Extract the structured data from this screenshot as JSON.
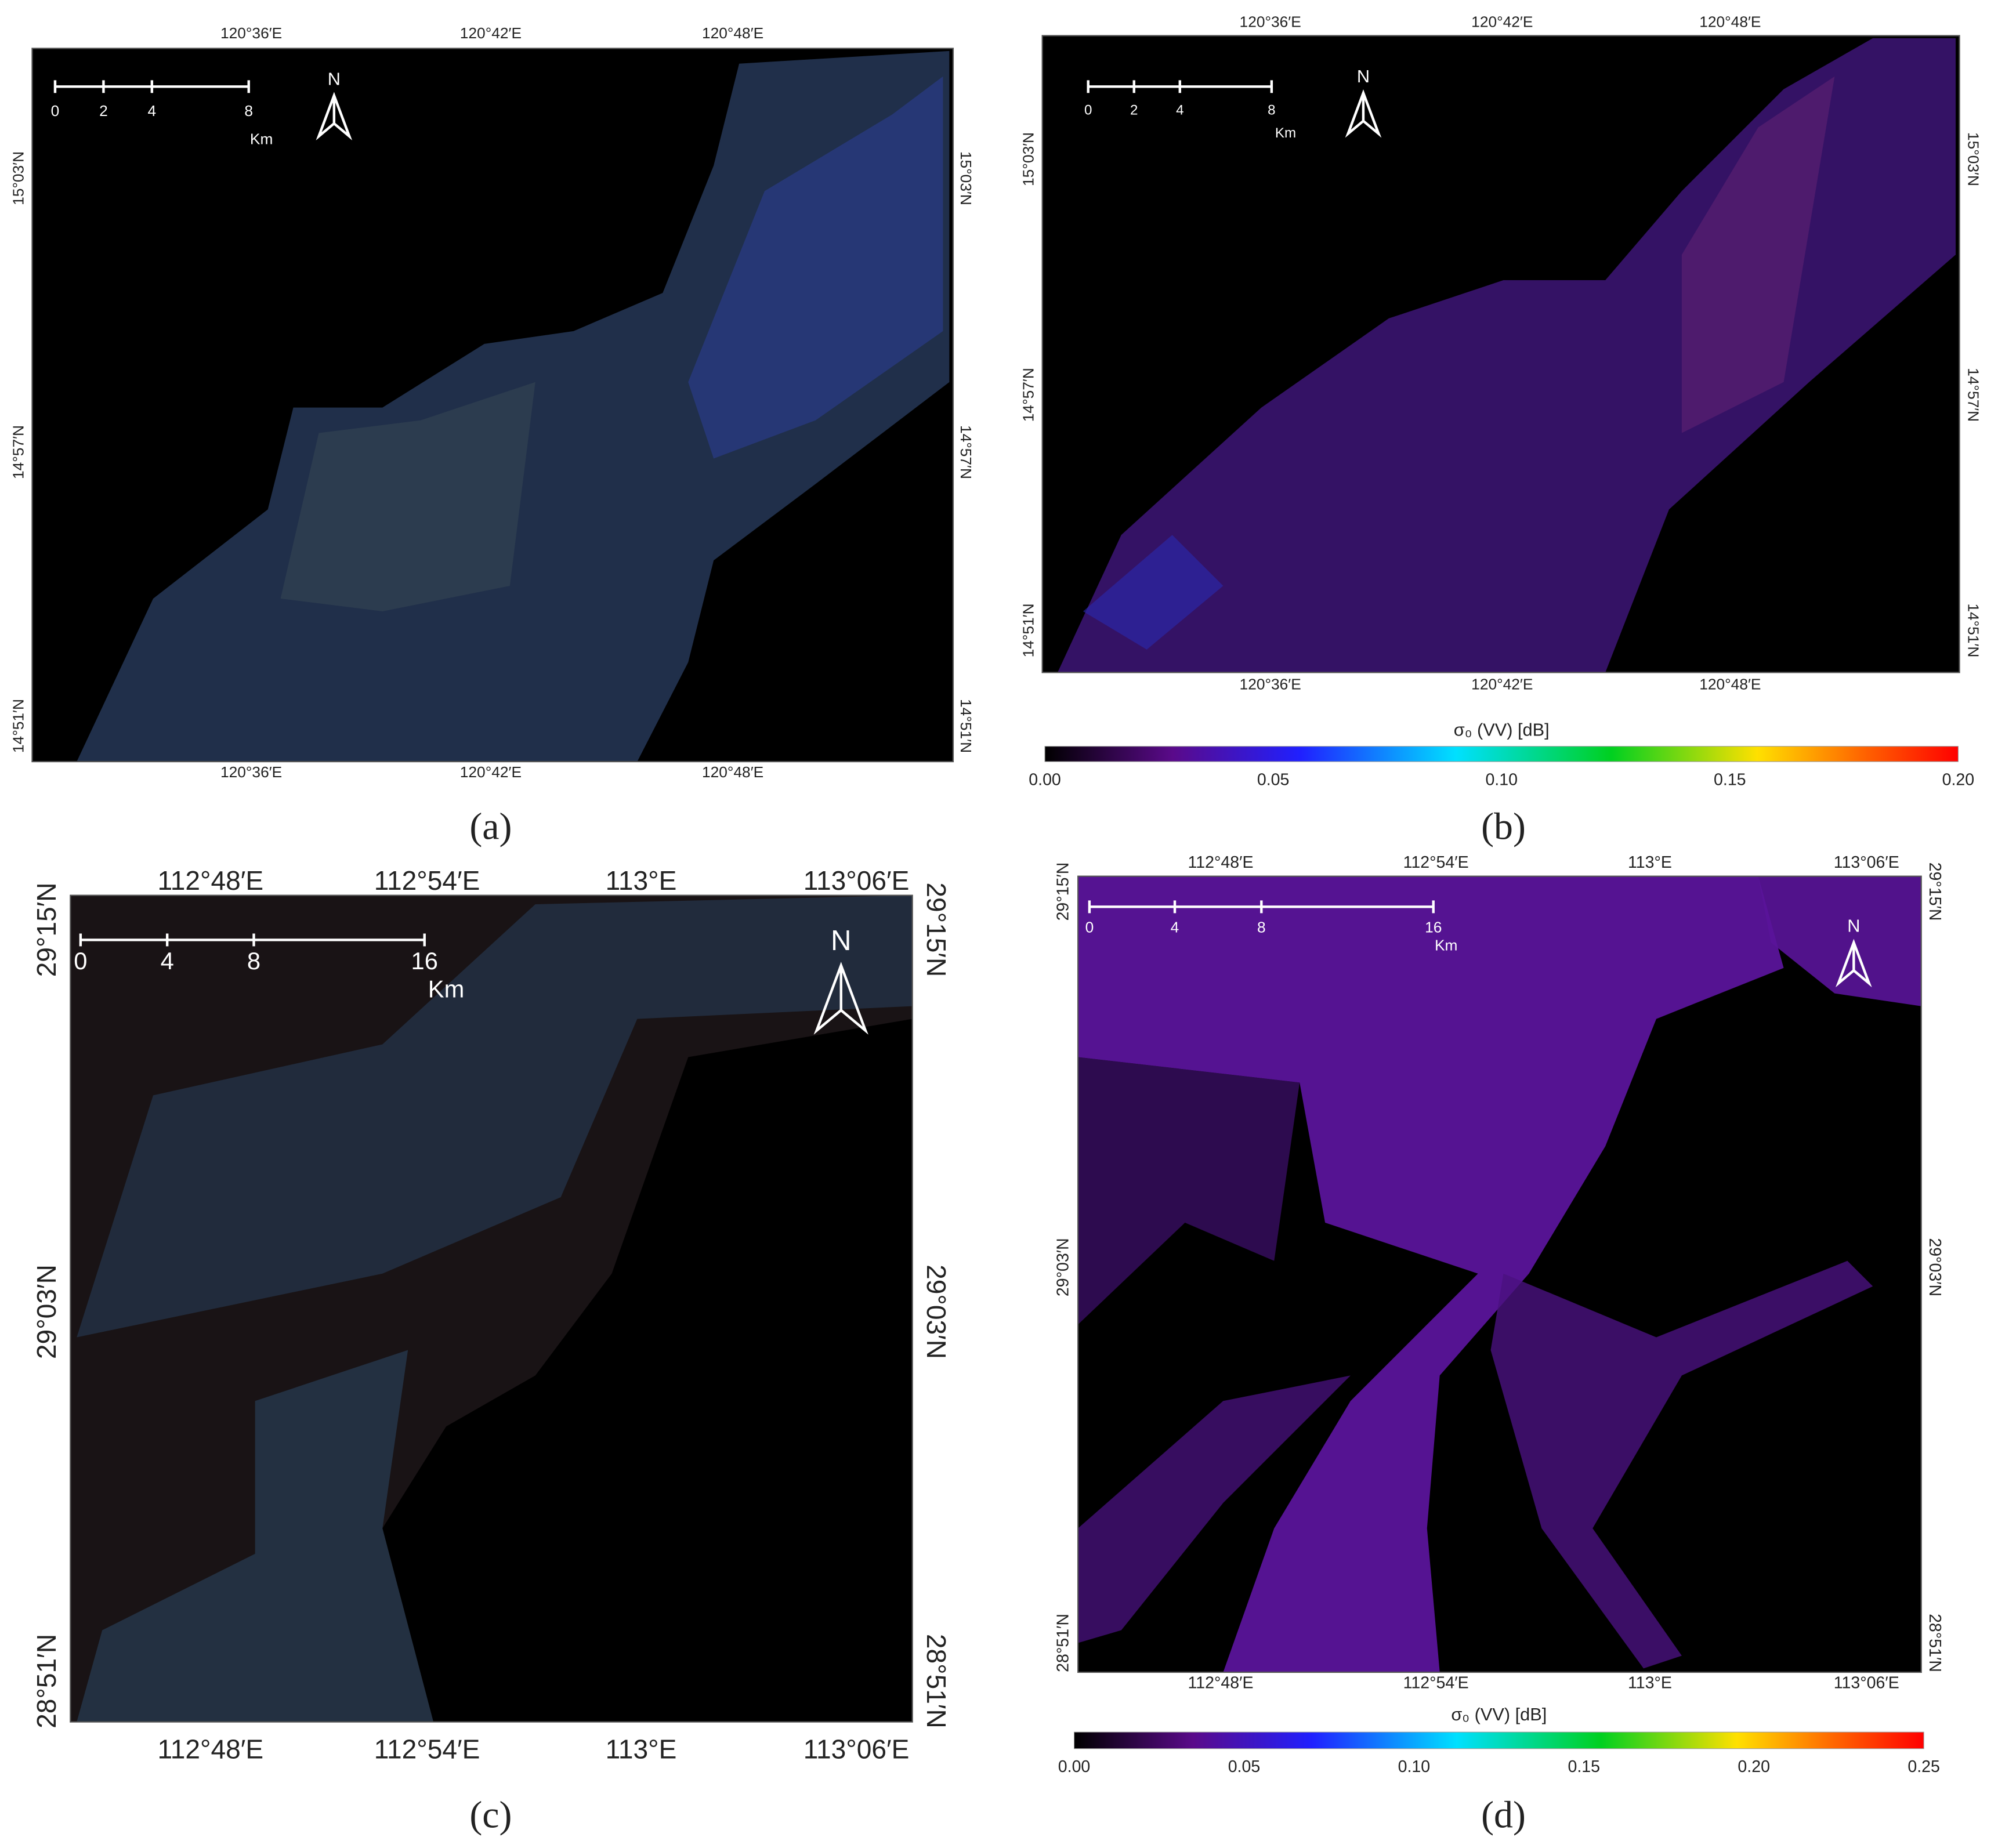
{
  "panels": [
    {
      "label": "(a)",
      "top_labels": [
        "120°36′E",
        "120°42′E",
        "120°48′E"
      ],
      "bottom_labels": [
        "120°36′E",
        "120°42′E",
        "120°48′E"
      ],
      "left_labels": [
        "15°03′N",
        "14°57′N",
        "14°51′N"
      ],
      "right_labels": [
        "15°03′N",
        "14°57′N",
        "14°51′N"
      ],
      "scale_bar": {
        "ticks": [
          "0",
          "2",
          "4",
          "8"
        ],
        "unit": "Km"
      },
      "north": "N"
    },
    {
      "label": "(b)",
      "top_labels": [
        "120°36′E",
        "120°42′E",
        "120°48′E"
      ],
      "bottom_labels": [
        "120°36′E",
        "120°42′E",
        "120°48′E"
      ],
      "left_labels": [
        "15°03′N",
        "14°57′N",
        "14°51′N"
      ],
      "right_labels": [
        "15°03′N",
        "14°57′N",
        "14°51′N"
      ],
      "scale_bar": {
        "ticks": [
          "0",
          "2",
          "4",
          "8"
        ],
        "unit": "Km"
      },
      "north": "N",
      "colorbar": {
        "title": "σ₀ (VV) [dB]",
        "ticks": [
          "0.00",
          "0.05",
          "0.10",
          "0.15",
          "0.20"
        ]
      }
    },
    {
      "label": "(c)",
      "top_labels": [
        "112°48′E",
        "112°54′E",
        "113°E",
        "113°06′E"
      ],
      "bottom_labels": [
        "112°48′E",
        "112°54′E",
        "113°E",
        "113°06′E"
      ],
      "left_labels": [
        "29°15′N",
        "29°03′N",
        "28°51′N"
      ],
      "right_labels": [
        "29°15′N",
        "29°03′N",
        "28°51′N"
      ],
      "scale_bar": {
        "ticks": [
          "0",
          "4",
          "8",
          "16"
        ],
        "unit": "Km"
      },
      "north": "N"
    },
    {
      "label": "(d)",
      "top_labels": [
        "112°48′E",
        "112°54′E",
        "113°E",
        "113°06′E"
      ],
      "bottom_labels": [
        "112°48′E",
        "112°54′E",
        "113°E",
        "113°06′E"
      ],
      "left_labels": [
        "29°15′N",
        "29°03′N",
        "28°51′N"
      ],
      "right_labels": [
        "29°15′N",
        "29°03′N",
        "28°51′N"
      ],
      "scale_bar": {
        "ticks": [
          "0",
          "4",
          "8",
          "16"
        ],
        "unit": "Km"
      },
      "north": "N",
      "colorbar": {
        "title": "σ₀ (VV) [dB]",
        "ticks": [
          "0.00",
          "0.05",
          "0.10",
          "0.15",
          "0.20",
          "0.25"
        ]
      }
    }
  ]
}
